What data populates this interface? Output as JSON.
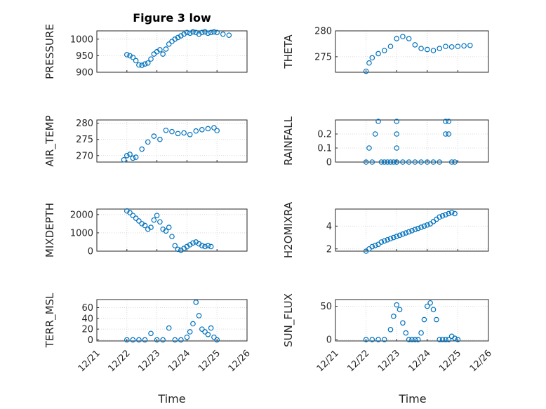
{
  "figure": {
    "title": "Figure 3 low",
    "xlabel": "Time",
    "marker_color": "#0072BD",
    "x_ticks": [
      "12/21",
      "12/22",
      "12/23",
      "12/24",
      "12/25",
      "12/26"
    ],
    "x_range": [
      "12/21",
      "12/26"
    ]
  },
  "chart_data": [
    {
      "type": "scatter",
      "ylabel": "PRESSURE",
      "ylim": [
        900,
        1025
      ],
      "yticks": [
        900,
        950,
        1000
      ],
      "grid": true,
      "x_dates": [
        "12/21",
        "12/22",
        "12/23",
        "12/24",
        "12/25",
        "12/26"
      ],
      "x": [
        1.0,
        1.1,
        1.2,
        1.3,
        1.4,
        1.5,
        1.6,
        1.7,
        1.8,
        1.9,
        2.0,
        2.1,
        2.2,
        2.3,
        2.4,
        2.5,
        2.6,
        2.7,
        2.8,
        2.9,
        3.0,
        3.1,
        3.2,
        3.3,
        3.4,
        3.5,
        3.6,
        3.7,
        3.8,
        3.9,
        4.0,
        4.2,
        4.4
      ],
      "y": [
        953,
        950,
        945,
        935,
        922,
        921,
        925,
        928,
        940,
        955,
        962,
        968,
        955,
        970,
        985,
        993,
        1000,
        1005,
        1010,
        1015,
        1020,
        1018,
        1022,
        1020,
        1015,
        1020,
        1022,
        1018,
        1020,
        1022,
        1020,
        1015,
        1012
      ]
    },
    {
      "type": "scatter",
      "ylabel": "THETA",
      "ylim": [
        272,
        280
      ],
      "yticks": [
        275,
        280
      ],
      "grid": true,
      "x": [
        1.0,
        1.1,
        1.2,
        1.4,
        1.6,
        1.8,
        2.0,
        2.2,
        2.4,
        2.6,
        2.8,
        3.0,
        3.2,
        3.4,
        3.6,
        3.8,
        4.0,
        4.2,
        4.4
      ],
      "y": [
        272.2,
        273.8,
        274.8,
        275.6,
        276.2,
        277.0,
        278.5,
        278.9,
        278.5,
        277.3,
        276.6,
        276.4,
        276.2,
        276.6,
        277.0,
        276.9,
        277.0,
        277.1,
        277.2
      ]
    },
    {
      "type": "scatter",
      "ylabel": "AIR_TEMP",
      "ylim": [
        268,
        281
      ],
      "yticks": [
        270,
        275,
        280
      ],
      "grid": true,
      "x": [
        0.9,
        1.0,
        1.1,
        1.2,
        1.3,
        1.5,
        1.7,
        1.9,
        2.1,
        2.3,
        2.5,
        2.7,
        2.9,
        3.1,
        3.3,
        3.5,
        3.7,
        3.9,
        4.0
      ],
      "y": [
        268.7,
        270.0,
        270.4,
        269.2,
        269.5,
        272.0,
        274.2,
        276.0,
        275.0,
        277.8,
        277.4,
        276.8,
        277.0,
        276.5,
        277.6,
        278.0,
        278.3,
        278.6,
        277.7
      ]
    },
    {
      "type": "scatter",
      "ylabel": "RAINFALL",
      "ylim": [
        0,
        0.3
      ],
      "yticks": [
        0,
        0.1,
        0.2
      ],
      "grid": true,
      "x": [
        1.0,
        1.1,
        1.2,
        1.3,
        1.4,
        1.5,
        1.6,
        1.7,
        1.8,
        1.9,
        2.0,
        2.0,
        2.0,
        2.0,
        2.0,
        2.2,
        2.4,
        2.6,
        2.8,
        3.0,
        3.2,
        3.4,
        3.6,
        3.6,
        3.7,
        3.7,
        3.8,
        3.9
      ],
      "y": [
        0,
        0.1,
        0,
        0.2,
        0.29,
        0,
        0,
        0,
        0,
        0,
        0.1,
        0.2,
        0.29,
        0,
        0,
        0,
        0,
        0,
        0,
        0,
        0,
        0,
        0.2,
        0.29,
        0.2,
        0.29,
        0,
        0
      ]
    },
    {
      "type": "scatter",
      "ylabel": "MIXDEPTH",
      "ylim": [
        0,
        2300
      ],
      "yticks": [
        0,
        1000,
        2000
      ],
      "grid": true,
      "x": [
        1.0,
        1.1,
        1.2,
        1.3,
        1.4,
        1.5,
        1.6,
        1.7,
        1.8,
        1.9,
        2.0,
        2.1,
        2.2,
        2.3,
        2.4,
        2.5,
        2.6,
        2.7,
        2.8,
        2.9,
        3.0,
        3.1,
        3.2,
        3.3,
        3.4,
        3.5,
        3.6,
        3.7,
        3.8
      ],
      "y": [
        2200,
        2100,
        1950,
        1800,
        1650,
        1500,
        1400,
        1200,
        1300,
        1700,
        1950,
        1600,
        1200,
        1100,
        1300,
        800,
        300,
        100,
        50,
        150,
        250,
        350,
        450,
        500,
        400,
        300,
        250,
        300,
        250
      ]
    },
    {
      "type": "scatter",
      "ylabel": "H2OMIXRA",
      "ylim": [
        1.8,
        5.5
      ],
      "yticks": [
        2,
        4
      ],
      "grid": true,
      "x": [
        1.0,
        1.1,
        1.2,
        1.3,
        1.4,
        1.5,
        1.6,
        1.7,
        1.8,
        1.9,
        2.0,
        2.1,
        2.2,
        2.3,
        2.4,
        2.5,
        2.6,
        2.7,
        2.8,
        2.9,
        3.0,
        3.1,
        3.2,
        3.3,
        3.4,
        3.5,
        3.6,
        3.7,
        3.8,
        3.9
      ],
      "y": [
        1.8,
        2.0,
        2.2,
        2.3,
        2.4,
        2.6,
        2.7,
        2.8,
        2.9,
        3.0,
        3.1,
        3.2,
        3.3,
        3.4,
        3.5,
        3.6,
        3.7,
        3.8,
        3.9,
        4.0,
        4.1,
        4.2,
        4.4,
        4.6,
        4.8,
        4.9,
        5.0,
        5.1,
        5.2,
        5.1
      ]
    },
    {
      "type": "scatter",
      "ylabel": "TERR_MSL",
      "ylim": [
        -2,
        75
      ],
      "yticks": [
        0,
        20,
        40,
        60
      ],
      "grid": true,
      "x": [
        1.0,
        1.2,
        1.4,
        1.6,
        1.8,
        2.0,
        2.2,
        2.4,
        2.6,
        2.8,
        3.0,
        3.1,
        3.2,
        3.3,
        3.4,
        3.5,
        3.6,
        3.7,
        3.8,
        3.9,
        4.0
      ],
      "y": [
        0,
        0,
        0,
        0,
        12,
        0,
        0,
        22,
        0,
        0,
        5,
        15,
        30,
        70,
        45,
        20,
        15,
        10,
        22,
        5,
        0
      ]
    },
    {
      "type": "scatter",
      "ylabel": "SUN_FLUX",
      "ylim": [
        -2,
        60
      ],
      "yticks": [
        0,
        50
      ],
      "grid": true,
      "x": [
        1.0,
        1.2,
        1.4,
        1.6,
        1.8,
        1.9,
        2.0,
        2.1,
        2.2,
        2.3,
        2.4,
        2.5,
        2.6,
        2.7,
        2.8,
        2.9,
        3.0,
        3.1,
        3.2,
        3.3,
        3.4,
        3.5,
        3.6,
        3.7,
        3.8,
        3.9,
        4.0
      ],
      "y": [
        0,
        0,
        0,
        0,
        15,
        35,
        52,
        45,
        25,
        10,
        0,
        0,
        0,
        0,
        10,
        30,
        50,
        55,
        45,
        30,
        0,
        0,
        0,
        0,
        5,
        2,
        0
      ]
    }
  ]
}
